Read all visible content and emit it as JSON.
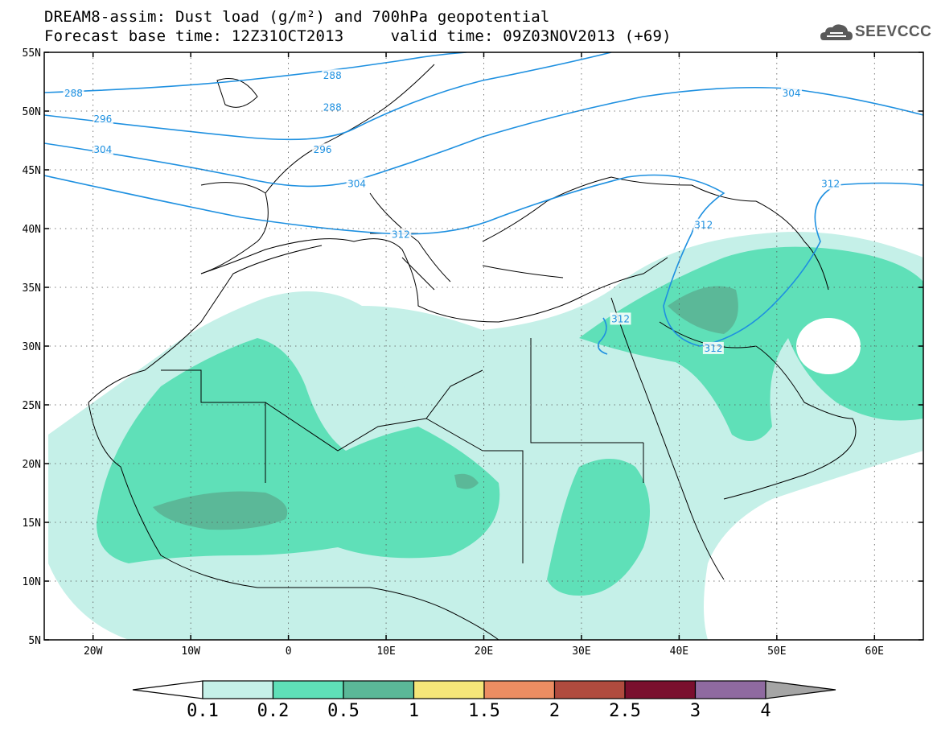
{
  "title": {
    "line1": "DREAM8-assim: Dust load (g/m²) and 700hPa geopotential",
    "line2": "Forecast base time: 12Z31OCT2013     valid time: 09Z03NOV2013 (+69)"
  },
  "logo": {
    "text": "SEEVCCC",
    "icon": "cloud-icon"
  },
  "axes": {
    "lat_labels": [
      "55N",
      "50N",
      "45N",
      "40N",
      "35N",
      "30N",
      "25N",
      "20N",
      "15N",
      "10N",
      "5N"
    ],
    "lat_values": [
      55,
      50,
      45,
      40,
      35,
      30,
      25,
      20,
      15,
      10,
      5
    ],
    "lon_labels": [
      "20W",
      "10W",
      "0",
      "10E",
      "20E",
      "30E",
      "40E",
      "50E",
      "60E"
    ],
    "lon_values": [
      -20,
      -10,
      0,
      10,
      20,
      30,
      40,
      50,
      60
    ],
    "lon_range": [
      -25,
      65
    ],
    "lat_range": [
      5,
      55
    ],
    "grid": "dotted"
  },
  "contours": {
    "labels": [
      {
        "text": "288",
        "lon": -22,
        "lat": 51.5
      },
      {
        "text": "288",
        "lon": 4.5,
        "lat": 53
      },
      {
        "text": "288",
        "lon": 4.5,
        "lat": 50.3
      },
      {
        "text": "296",
        "lon": -19,
        "lat": 49.3
      },
      {
        "text": "296",
        "lon": 3.5,
        "lat": 46.7
      },
      {
        "text": "304",
        "lon": -19,
        "lat": 46.7
      },
      {
        "text": "304",
        "lon": 7,
        "lat": 43.8
      },
      {
        "text": "304",
        "lon": 51.5,
        "lat": 51.5
      },
      {
        "text": "312",
        "lon": 11.5,
        "lat": 39.5
      },
      {
        "text": "312",
        "lon": 42.5,
        "lat": 40.3
      },
      {
        "text": "312",
        "lon": 55.5,
        "lat": 43.8
      },
      {
        "text": "312",
        "lon": 34,
        "lat": 32.3
      },
      {
        "text": "312",
        "lon": 43.5,
        "lat": 29.8
      }
    ],
    "color": "#1e90e0"
  },
  "colorbar": {
    "labels": [
      "0.1",
      "0.2",
      "0.5",
      "1",
      "1.5",
      "2",
      "2.5",
      "3",
      "4"
    ],
    "colors": [
      "#c5f0e8",
      "#5fe0b8",
      "#5bb898",
      "#f5e679",
      "#ec8d62",
      "#b04b3e",
      "#7a0f2e",
      "#8f6aa0",
      "#a5a5a5"
    ]
  }
}
